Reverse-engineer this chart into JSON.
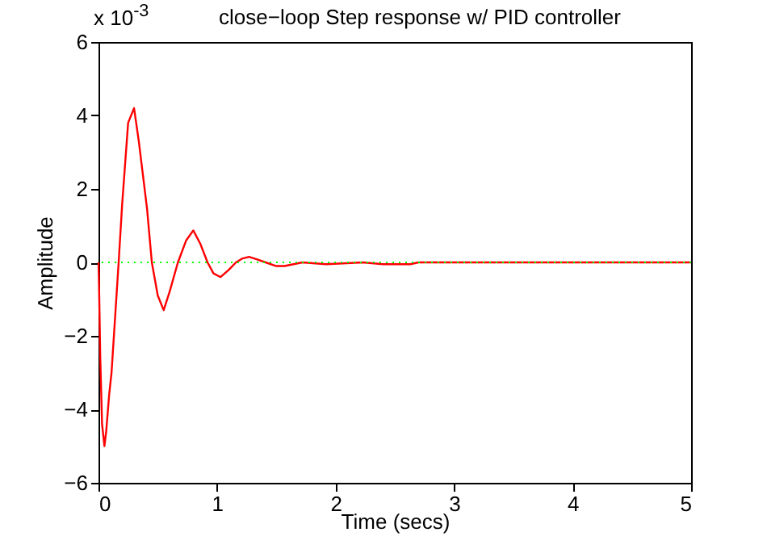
{
  "chart_data": {
    "type": "line",
    "title": "close−loop Step response w/ PID controller",
    "xlabel": "Time (secs)",
    "ylabel": "Amplitude",
    "annotations": [
      "x 10$^{-3}$"
    ],
    "x": [
      0,
      0.005,
      0.015,
      0.03,
      0.05,
      0.065,
      0.09,
      0.11,
      0.14,
      0.17,
      0.2,
      0.25,
      0.3,
      0.34,
      0.41,
      0.45,
      0.5,
      0.55,
      0.6,
      0.67,
      0.74,
      0.8,
      0.86,
      0.92,
      0.97,
      1.03,
      1.1,
      1.16,
      1.21,
      1.27,
      1.34,
      1.41,
      1.5,
      1.57,
      1.72,
      1.92,
      2.23,
      2.4,
      2.63,
      2.7,
      3,
      4,
      5
    ],
    "series": [
      {
        "color": "#ff0000",
        "values": [
          0,
          -0.7,
          -2.6,
          -4.4,
          -5.0,
          -4.6,
          -3.6,
          -3.0,
          -1.5,
          0,
          1.6,
          3.8,
          4.2,
          3.3,
          1.45,
          0,
          -0.9,
          -1.3,
          -0.8,
          0,
          0.6,
          0.87,
          0.5,
          0,
          -0.3,
          -0.4,
          -0.2,
          0,
          0.1,
          0.15,
          0.08,
          0,
          -0.1,
          -0.1,
          0,
          -0.05,
          0,
          -0.05,
          -0.05,
          0,
          0,
          0,
          0
        ]
      }
    ],
    "xlim": [
      0,
      5
    ],
    "ylim": [
      -6,
      6
    ],
    "xticks": [
      0,
      1,
      2,
      3,
      4,
      5
    ],
    "yticks": [
      -6,
      -4,
      -2,
      0,
      2,
      4,
      6
    ],
    "grid": false,
    "marker": "none",
    "line_style": "solid",
    "ref_lines": [
      {
        "axis": "y",
        "value": 0,
        "color": "#00ff00",
        "line_style": "dotted"
      }
    ]
  }
}
